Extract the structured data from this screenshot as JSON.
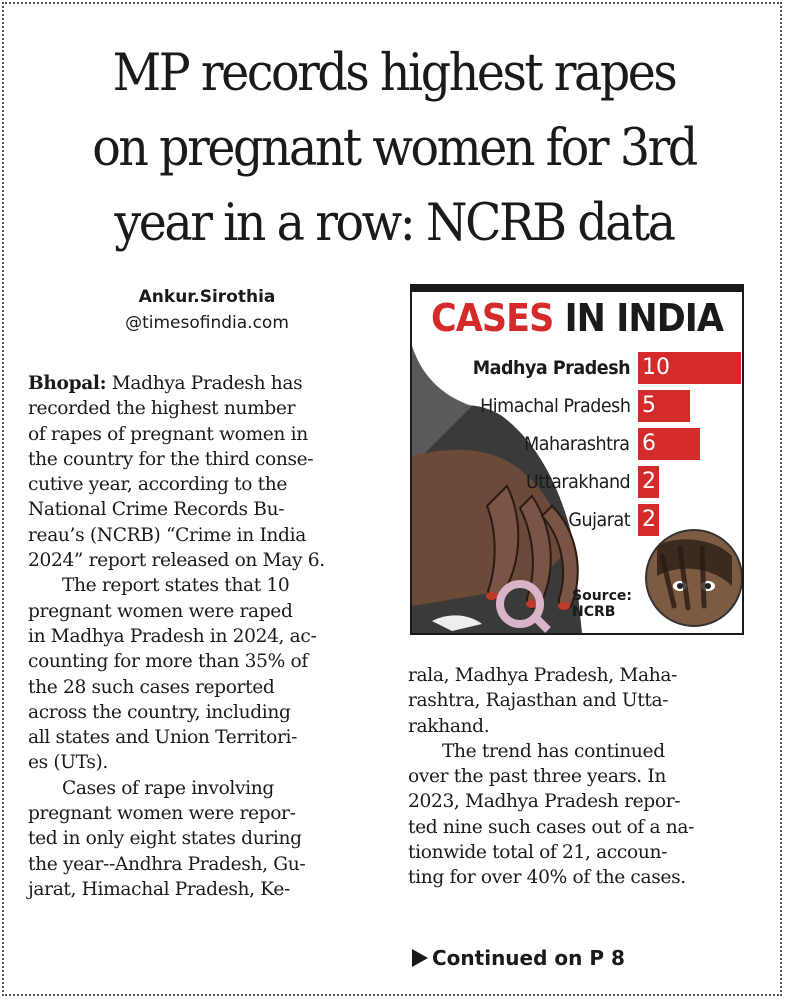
{
  "headline": {
    "lines": [
      "MP records highest rapes",
      "on pregnant women for 3rd",
      "year in a row: NCRB data"
    ]
  },
  "byline": {
    "author": "Ankur.Sirothia",
    "handle": "@timesofindia.com"
  },
  "article": {
    "dateline": "Bhopal:",
    "left_lines": [
      " Madhya Pradesh has",
      "recorded the highest number",
      "of rapes of pregnant women in",
      "the country for the third conse-",
      "cutive year, according to the",
      "National Crime Records Bu-",
      "reau’s (NCRB) “Crime in India",
      "2024” report released on May 6.",
      "The report states that 10",
      "pregnant women were raped",
      "in Madhya Pradesh in 2024, ac-",
      "counting for more than 35% of",
      "the 28 such cases reported",
      "across the country, including",
      "all states and Union Territori-",
      "es (UTs).",
      "Cases of rape involving",
      "pregnant women were repor-",
      "ted in only eight states during",
      "the year--Andhra Pradesh, Gu-",
      "jarat, Himachal Pradesh, Ke-"
    ],
    "right_lines": [
      "rala, Madhya Pradesh, Maha-",
      "rashtra, Rajasthan and Utta-",
      "rakhand.",
      "The trend has continued",
      "over the past three years. In",
      "2023, Madhya Pradesh repor-",
      "ted nine such cases out of a na-",
      "tionwide total of 21, accoun-",
      "ting for over 40% of the cases."
    ],
    "continued": "Continued on P 8"
  },
  "infobox": {
    "title_red": "CASES",
    "title_black": " IN INDIA",
    "source": [
      "Source:",
      "NCRB"
    ]
  },
  "chart_data": {
    "type": "bar",
    "title": "CASES IN INDIA",
    "categories": [
      "Madhya Pradesh",
      "Himachal Pradesh",
      "Maharashtra",
      "Uttarakhand",
      "Gujarat"
    ],
    "values": [
      10,
      5,
      6,
      2,
      2
    ],
    "bar_color": "#d42a2a",
    "orientation": "horizontal"
  },
  "colors": {
    "accent_red": "#d42a2a",
    "text": "#1a1a1a"
  }
}
